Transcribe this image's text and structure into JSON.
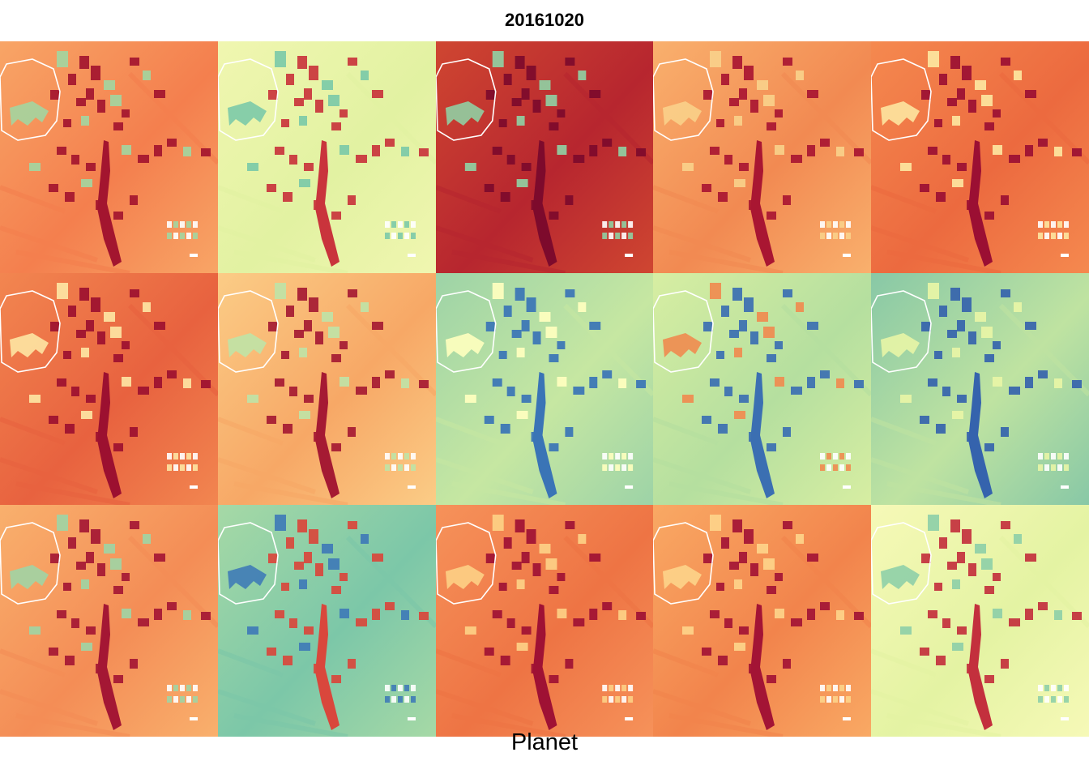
{
  "title": "20161020",
  "footer_label": "Planet",
  "colormap": "Spectral",
  "colors": {
    "dark_red": "#9e0142",
    "red": "#d53e4f",
    "orange": "#f46d43",
    "light_orange": "#fdae61",
    "pale_orange": "#fee08b",
    "pale_yellow": "#ffffbf",
    "pale_green": "#e6f598",
    "green": "#abdda4",
    "teal": "#66c2a5",
    "blue": "#3288bd",
    "outline": "#ffffff"
  },
  "panels": [
    {
      "row": 1,
      "col": 1,
      "bg": "#f8a566",
      "bg2": "#f47f4e",
      "field": "#a3152f",
      "patch": "#a3d5a0"
    },
    {
      "row": 1,
      "col": 2,
      "bg": "#f0f6b0",
      "bg2": "#e2f2a2",
      "field": "#c9343c",
      "patch": "#7ccaa8"
    },
    {
      "row": 1,
      "col": 3,
      "bg": "#cf4631",
      "bg2": "#b7262f",
      "field": "#7d0a2c",
      "patch": "#90cfa3"
    },
    {
      "row": 1,
      "col": 4,
      "bg": "#f9b06d",
      "bg2": "#f28a52",
      "field": "#a91632",
      "patch": "#f9d08a"
    },
    {
      "row": 1,
      "col": 5,
      "bg": "#f5894f",
      "bg2": "#ec6a3f",
      "field": "#9b0f33",
      "patch": "#fde6a0"
    },
    {
      "row": 2,
      "col": 1,
      "bg": "#f28650",
      "bg2": "#e8623f",
      "field": "#9c1030",
      "patch": "#fde5a3"
    },
    {
      "row": 2,
      "col": 2,
      "bg": "#fbcc86",
      "bg2": "#f7a866",
      "field": "#a51a33",
      "patch": "#bfe3a6"
    },
    {
      "row": 2,
      "col": 3,
      "bg": "#9dd3a7",
      "bg2": "#c6e7a2",
      "field": "#3a74b6",
      "patch": "#ffffbf"
    },
    {
      "row": 2,
      "col": 4,
      "bg": "#d7eea2",
      "bg2": "#b5df9f",
      "field": "#3b6fb2",
      "patch": "#f08b4f"
    },
    {
      "row": 2,
      "col": 5,
      "bg": "#88c8a6",
      "bg2": "#bfe3a1",
      "field": "#3563ad",
      "patch": "#e8f5a6"
    },
    {
      "row": 3,
      "col": 1,
      "bg": "#f9b06d",
      "bg2": "#f48d56",
      "field": "#a41734",
      "patch": "#a0d4a4"
    },
    {
      "row": 3,
      "col": 2,
      "bg": "#a6d9a6",
      "bg2": "#7cc7a8",
      "field": "#d9473c",
      "patch": "#3f7bb7"
    },
    {
      "row": 3,
      "col": 3,
      "bg": "#f6925a",
      "bg2": "#ee7444",
      "field": "#9f1134",
      "patch": "#fdd085"
    },
    {
      "row": 3,
      "col": 4,
      "bg": "#f9a964",
      "bg2": "#f2844c",
      "field": "#a31435",
      "patch": "#fdd48a"
    },
    {
      "row": 3,
      "col": 5,
      "bg": "#f6f9b7",
      "bg2": "#e4f3a3",
      "field": "#c3303d",
      "patch": "#8ecfa8"
    }
  ]
}
